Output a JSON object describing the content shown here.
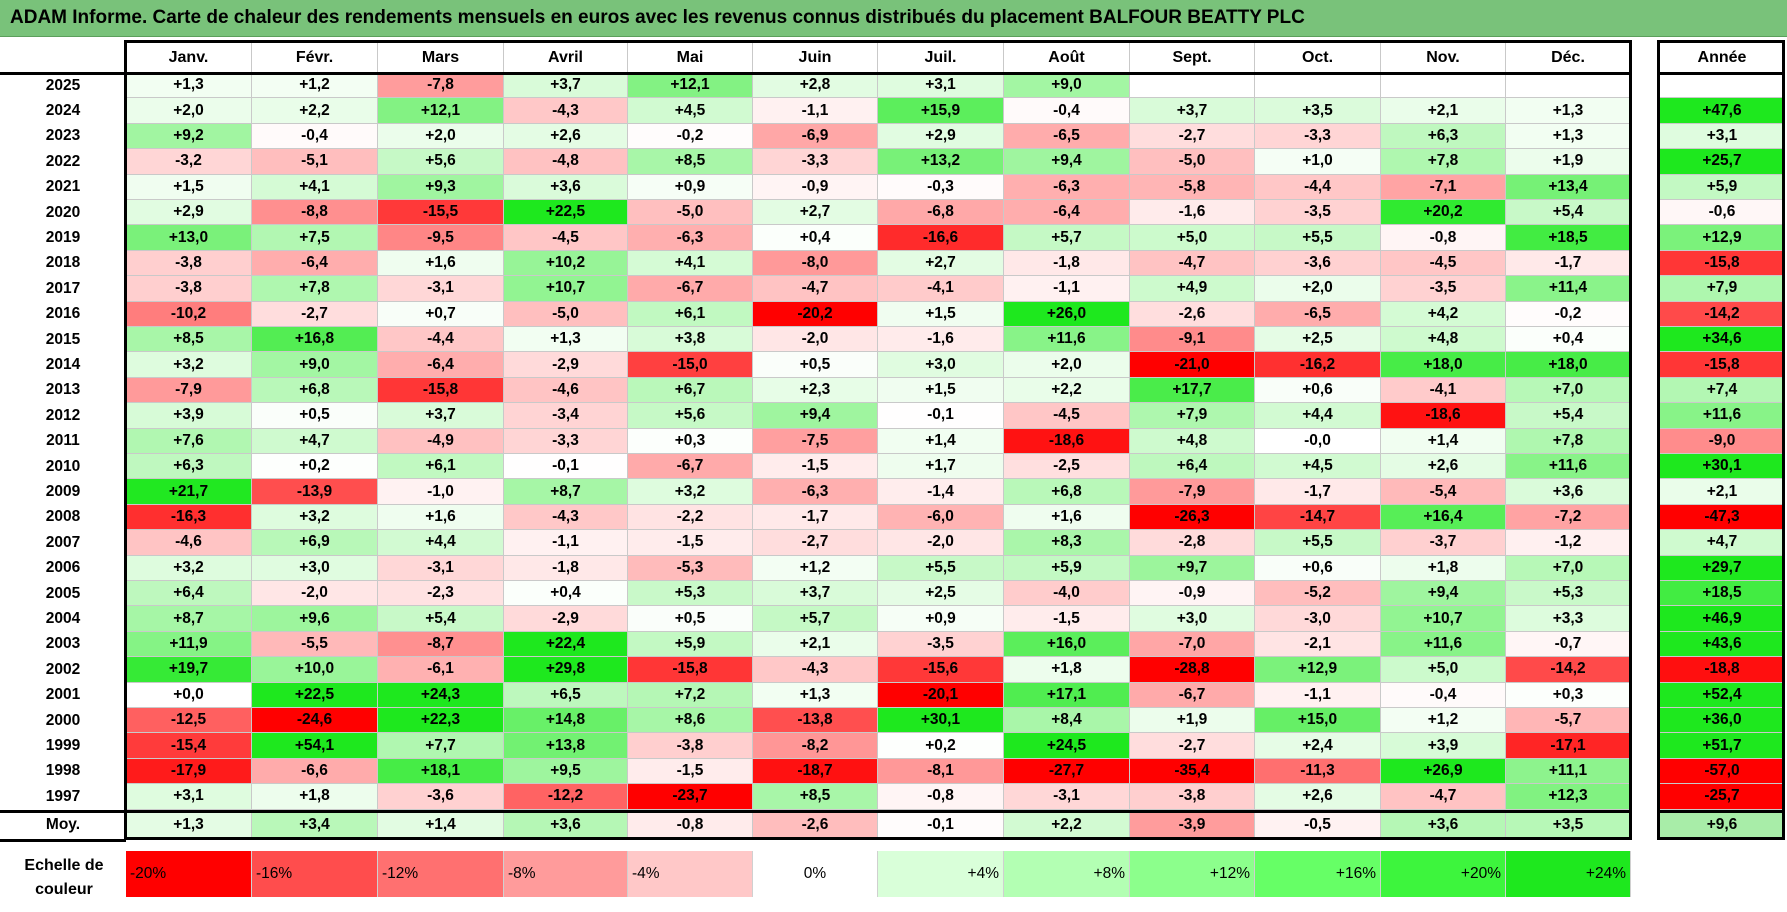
{
  "title": "ADAM Informe. Carte de chaleur des rendements mensuels en euros avec les revenus connus distribués du placement BALFOUR BEATTY PLC",
  "chart_data": {
    "type": "heatmap",
    "title": "ADAM Informe. Carte de chaleur des rendements mensuels en euros avec les revenus connus distribués du placement BALFOUR BEATTY PLC",
    "columns": [
      "Janv.",
      "Févr.",
      "Mars",
      "Avril",
      "Mai",
      "Juin",
      "Juil.",
      "Août",
      "Sept.",
      "Oct.",
      "Nov.",
      "Déc."
    ],
    "annual_header": "Année",
    "rows": [
      {
        "year": "2025",
        "values": [
          "+1,3",
          "+1,2",
          "-7,8",
          "+3,7",
          "+12,1",
          "+2,8",
          "+3,1",
          "+9,0",
          "",
          "",
          "",
          ""
        ],
        "annual": ""
      },
      {
        "year": "2024",
        "values": [
          "+2,0",
          "+2,2",
          "+12,1",
          "-4,3",
          "+4,5",
          "-1,1",
          "+15,9",
          "-0,4",
          "+3,7",
          "+3,5",
          "+2,1",
          "+1,3"
        ],
        "annual": "+47,6"
      },
      {
        "year": "2023",
        "values": [
          "+9,2",
          "-0,4",
          "+2,0",
          "+2,6",
          "-0,2",
          "-6,9",
          "+2,9",
          "-6,5",
          "-2,7",
          "-3,3",
          "+6,3",
          "+1,3"
        ],
        "annual": "+3,1"
      },
      {
        "year": "2022",
        "values": [
          "-3,2",
          "-5,1",
          "+5,6",
          "-4,8",
          "+8,5",
          "-3,3",
          "+13,2",
          "+9,4",
          "-5,0",
          "+1,0",
          "+7,8",
          "+1,9"
        ],
        "annual": "+25,7"
      },
      {
        "year": "2021",
        "values": [
          "+1,5",
          "+4,1",
          "+9,3",
          "+3,6",
          "+0,9",
          "-0,9",
          "-0,3",
          "-6,3",
          "-5,8",
          "-4,4",
          "-7,1",
          "+13,4"
        ],
        "annual": "+5,9"
      },
      {
        "year": "2020",
        "values": [
          "+2,9",
          "-8,8",
          "-15,5",
          "+22,5",
          "-5,0",
          "+2,7",
          "-6,8",
          "-6,4",
          "-1,6",
          "-3,5",
          "+20,2",
          "+5,4"
        ],
        "annual": "-0,6"
      },
      {
        "year": "2019",
        "values": [
          "+13,0",
          "+7,5",
          "-9,5",
          "-4,5",
          "-6,3",
          "+0,4",
          "-16,6",
          "+5,7",
          "+5,0",
          "+5,5",
          "-0,8",
          "+18,5"
        ],
        "annual": "+12,9"
      },
      {
        "year": "2018",
        "values": [
          "-3,8",
          "-6,4",
          "+1,6",
          "+10,2",
          "+4,1",
          "-8,0",
          "+2,7",
          "-1,8",
          "-4,7",
          "-3,6",
          "-4,5",
          "-1,7"
        ],
        "annual": "-15,8"
      },
      {
        "year": "2017",
        "values": [
          "-3,8",
          "+7,8",
          "-3,1",
          "+10,7",
          "-6,7",
          "-4,7",
          "-4,1",
          "-1,1",
          "+4,9",
          "+2,0",
          "-3,5",
          "+11,4"
        ],
        "annual": "+7,9"
      },
      {
        "year": "2016",
        "values": [
          "-10,2",
          "-2,7",
          "+0,7",
          "-5,0",
          "+6,1",
          "-20,2",
          "+1,5",
          "+26,0",
          "-2,6",
          "-6,5",
          "+4,2",
          "-0,2"
        ],
        "annual": "-14,2"
      },
      {
        "year": "2015",
        "values": [
          "+8,5",
          "+16,8",
          "-4,4",
          "+1,3",
          "+3,8",
          "-2,0",
          "-1,6",
          "+11,6",
          "-9,1",
          "+2,5",
          "+4,8",
          "+0,4"
        ],
        "annual": "+34,6"
      },
      {
        "year": "2014",
        "values": [
          "+3,2",
          "+9,0",
          "-6,4",
          "-2,9",
          "-15,0",
          "+0,5",
          "+3,0",
          "+2,0",
          "-21,0",
          "-16,2",
          "+18,0",
          "+18,0"
        ],
        "annual": "-15,8"
      },
      {
        "year": "2013",
        "values": [
          "-7,9",
          "+6,8",
          "-15,8",
          "-4,6",
          "+6,7",
          "+2,3",
          "+1,5",
          "+2,2",
          "+17,7",
          "+0,6",
          "-4,1",
          "+7,0"
        ],
        "annual": "+7,4"
      },
      {
        "year": "2012",
        "values": [
          "+3,9",
          "+0,5",
          "+3,7",
          "-3,4",
          "+5,6",
          "+9,4",
          "-0,1",
          "-4,5",
          "+7,9",
          "+4,4",
          "-18,6",
          "+5,4"
        ],
        "annual": "+11,6"
      },
      {
        "year": "2011",
        "values": [
          "+7,6",
          "+4,7",
          "-4,9",
          "-3,3",
          "+0,3",
          "-7,5",
          "+1,4",
          "-18,6",
          "+4,8",
          "-0,0",
          "+1,4",
          "+7,8"
        ],
        "annual": "-9,0"
      },
      {
        "year": "2010",
        "values": [
          "+6,3",
          "+0,2",
          "+6,1",
          "-0,1",
          "-6,7",
          "-1,5",
          "+1,7",
          "-2,5",
          "+6,4",
          "+4,5",
          "+2,6",
          "+11,6"
        ],
        "annual": "+30,1"
      },
      {
        "year": "2009",
        "values": [
          "+21,7",
          "-13,9",
          "-1,0",
          "+8,7",
          "+3,2",
          "-6,3",
          "-1,4",
          "+6,8",
          "-7,9",
          "-1,7",
          "-5,4",
          "+3,6"
        ],
        "annual": "+2,1"
      },
      {
        "year": "2008",
        "values": [
          "-16,3",
          "+3,2",
          "+1,6",
          "-4,3",
          "-2,2",
          "-1,7",
          "-6,0",
          "+1,6",
          "-26,3",
          "-14,7",
          "+16,4",
          "-7,2"
        ],
        "annual": "-47,3"
      },
      {
        "year": "2007",
        "values": [
          "-4,6",
          "+6,9",
          "+4,4",
          "-1,1",
          "-1,5",
          "-2,7",
          "-2,0",
          "+8,3",
          "-2,8",
          "+5,5",
          "-3,7",
          "-1,2"
        ],
        "annual": "+4,7"
      },
      {
        "year": "2006",
        "values": [
          "+3,2",
          "+3,0",
          "-3,1",
          "-1,8",
          "-5,3",
          "+1,2",
          "+5,5",
          "+5,9",
          "+9,7",
          "+0,6",
          "+1,8",
          "+7,0"
        ],
        "annual": "+29,7"
      },
      {
        "year": "2005",
        "values": [
          "+6,4",
          "-2,0",
          "-2,3",
          "+0,4",
          "+5,3",
          "+3,7",
          "+2,5",
          "-4,0",
          "-0,9",
          "-5,2",
          "+9,4",
          "+5,3"
        ],
        "annual": "+18,5"
      },
      {
        "year": "2004",
        "values": [
          "+8,7",
          "+9,6",
          "+5,4",
          "-2,9",
          "+0,5",
          "+5,7",
          "+0,9",
          "-1,5",
          "+3,0",
          "-3,0",
          "+10,7",
          "+3,3"
        ],
        "annual": "+46,9"
      },
      {
        "year": "2003",
        "values": [
          "+11,9",
          "-5,5",
          "-8,7",
          "+22,4",
          "+5,9",
          "+2,1",
          "-3,5",
          "+16,0",
          "-7,0",
          "-2,1",
          "+11,6",
          "-0,7"
        ],
        "annual": "+43,6"
      },
      {
        "year": "2002",
        "values": [
          "+19,7",
          "+10,0",
          "-6,1",
          "+29,8",
          "-15,8",
          "-4,3",
          "-15,6",
          "+1,8",
          "-28,8",
          "+12,9",
          "+5,0",
          "-14,2"
        ],
        "annual": "-18,8"
      },
      {
        "year": "2001",
        "values": [
          "+0,0",
          "+22,5",
          "+24,3",
          "+6,5",
          "+7,2",
          "+1,3",
          "-20,1",
          "+17,1",
          "-6,7",
          "-1,1",
          "-0,4",
          "+0,3"
        ],
        "annual": "+52,4"
      },
      {
        "year": "2000",
        "values": [
          "-12,5",
          "-24,6",
          "+22,3",
          "+14,8",
          "+8,6",
          "-13,8",
          "+30,1",
          "+8,4",
          "+1,9",
          "+15,0",
          "+1,2",
          "-5,7"
        ],
        "annual": "+36,0"
      },
      {
        "year": "1999",
        "values": [
          "-15,4",
          "+54,1",
          "+7,7",
          "+13,8",
          "-3,8",
          "-8,2",
          "+0,2",
          "+24,5",
          "-2,7",
          "+2,4",
          "+3,9",
          "-17,1"
        ],
        "annual": "+51,7"
      },
      {
        "year": "1998",
        "values": [
          "-17,9",
          "-6,6",
          "+18,1",
          "+9,5",
          "-1,5",
          "-18,7",
          "-8,1",
          "-27,7",
          "-35,4",
          "-11,3",
          "+26,9",
          "+11,1"
        ],
        "annual": "-57,0"
      },
      {
        "year": "1997",
        "values": [
          "+3,1",
          "+1,8",
          "-3,6",
          "-12,2",
          "-23,7",
          "+8,5",
          "-0,8",
          "-3,1",
          "-3,8",
          "+2,6",
          "-4,7",
          "+12,3"
        ],
        "annual": "-25,7"
      }
    ],
    "average": {
      "label": "Moy.",
      "values": [
        "+1,3",
        "+3,4",
        "+1,4",
        "+3,6",
        "-0,8",
        "-2,6",
        "-0,1",
        "+2,2",
        "-3,9",
        "-0,5",
        "+3,6",
        "+3,5"
      ],
      "annual": "+9,6"
    },
    "scale": {
      "label": "Echelle de couleur",
      "stops": [
        "-20%",
        "-16%",
        "-12%",
        "-8%",
        "-4%",
        "0%",
        "+4%",
        "+8%",
        "+12%",
        "+16%",
        "+20%",
        "+24%"
      ],
      "colors": [
        "#ff0000",
        "#ff4d4d",
        "#ff7070",
        "#ff9b9b",
        "#ffc8c8",
        "#ffffff",
        "#d9ffd9",
        "#b3ffb3",
        "#8cff8c",
        "#66ff66",
        "#3df53d",
        "#1ee81e"
      ]
    }
  }
}
